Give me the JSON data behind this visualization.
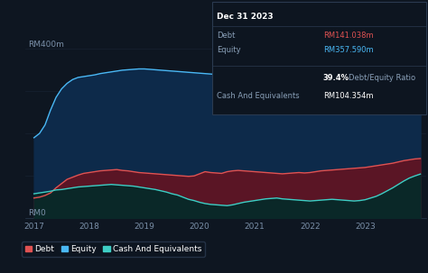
{
  "background_color": "#0e1621",
  "plot_bg_color": "#0e1621",
  "grid_color": "#1a2535",
  "title_box": {
    "date": "Dec 31 2023",
    "debt_label": "Debt",
    "debt_value": "RM141.038m",
    "equity_label": "Equity",
    "equity_value": "RM357.590m",
    "ratio_value": "39.4%",
    "ratio_label": "Debt/Equity Ratio",
    "cash_label": "Cash And Equivalents",
    "cash_value": "RM104.354m",
    "box_bg": "#0d1520",
    "box_border": "#2a3a50"
  },
  "ylabel_400": "RM400m",
  "ylabel_0": "RM0",
  "x_years": [
    2017,
    2018,
    2019,
    2020,
    2021,
    2022,
    2023
  ],
  "equity_y": [
    190,
    200,
    220,
    255,
    285,
    305,
    318,
    327,
    332,
    334,
    336,
    338,
    341,
    343,
    345,
    347,
    349,
    350,
    351,
    352,
    352,
    351,
    350,
    349,
    348,
    347,
    346,
    345,
    344,
    343,
    342,
    341,
    340,
    339,
    338,
    337,
    336,
    335,
    334,
    333,
    332,
    333,
    334,
    335,
    336,
    335,
    334,
    333,
    332,
    331,
    330,
    333,
    336,
    338,
    340,
    342,
    344,
    346,
    348,
    350,
    352,
    354,
    355,
    356,
    357,
    357.5,
    357.6,
    357.6,
    357.59,
    357.5,
    357.59
  ],
  "debt_y": [
    48,
    50,
    54,
    60,
    72,
    82,
    92,
    97,
    102,
    106,
    108,
    110,
    112,
    113,
    114,
    115,
    113,
    112,
    110,
    108,
    107,
    106,
    105,
    104,
    103,
    102,
    101,
    100,
    99,
    100,
    105,
    110,
    108,
    107,
    106,
    110,
    112,
    113,
    112,
    111,
    110,
    109,
    108,
    107,
    106,
    105,
    106,
    107,
    108,
    107,
    108,
    110,
    112,
    113,
    114,
    115,
    116,
    117,
    118,
    119,
    120,
    122,
    124,
    126,
    128,
    130,
    133,
    136,
    138,
    140,
    141.038
  ],
  "cash_y": [
    58,
    60,
    62,
    64,
    67,
    68,
    70,
    72,
    74,
    75,
    76,
    77,
    78,
    79,
    80,
    79,
    78,
    77,
    76,
    74,
    72,
    70,
    68,
    65,
    62,
    58,
    55,
    50,
    45,
    42,
    38,
    35,
    33,
    32,
    31,
    30,
    32,
    35,
    38,
    40,
    42,
    44,
    46,
    47,
    48,
    46,
    45,
    44,
    43,
    42,
    41,
    42,
    43,
    44,
    45,
    44,
    43,
    42,
    41,
    42,
    44,
    48,
    52,
    58,
    65,
    72,
    80,
    88,
    95,
    100,
    104.354
  ],
  "debt_color": "#e05252",
  "debt_fill_color": "#5a1525",
  "equity_color": "#4ab8f5",
  "equity_fill_color": "#0d2a4a",
  "cash_color": "#3ecec5",
  "cash_fill_color": "#0a2828",
  "legend_items": [
    "Debt",
    "Equity",
    "Cash And Equivalents"
  ],
  "ylim": [
    0,
    450
  ],
  "xlim_min": 2016.85,
  "xlim_max": 2024.1
}
